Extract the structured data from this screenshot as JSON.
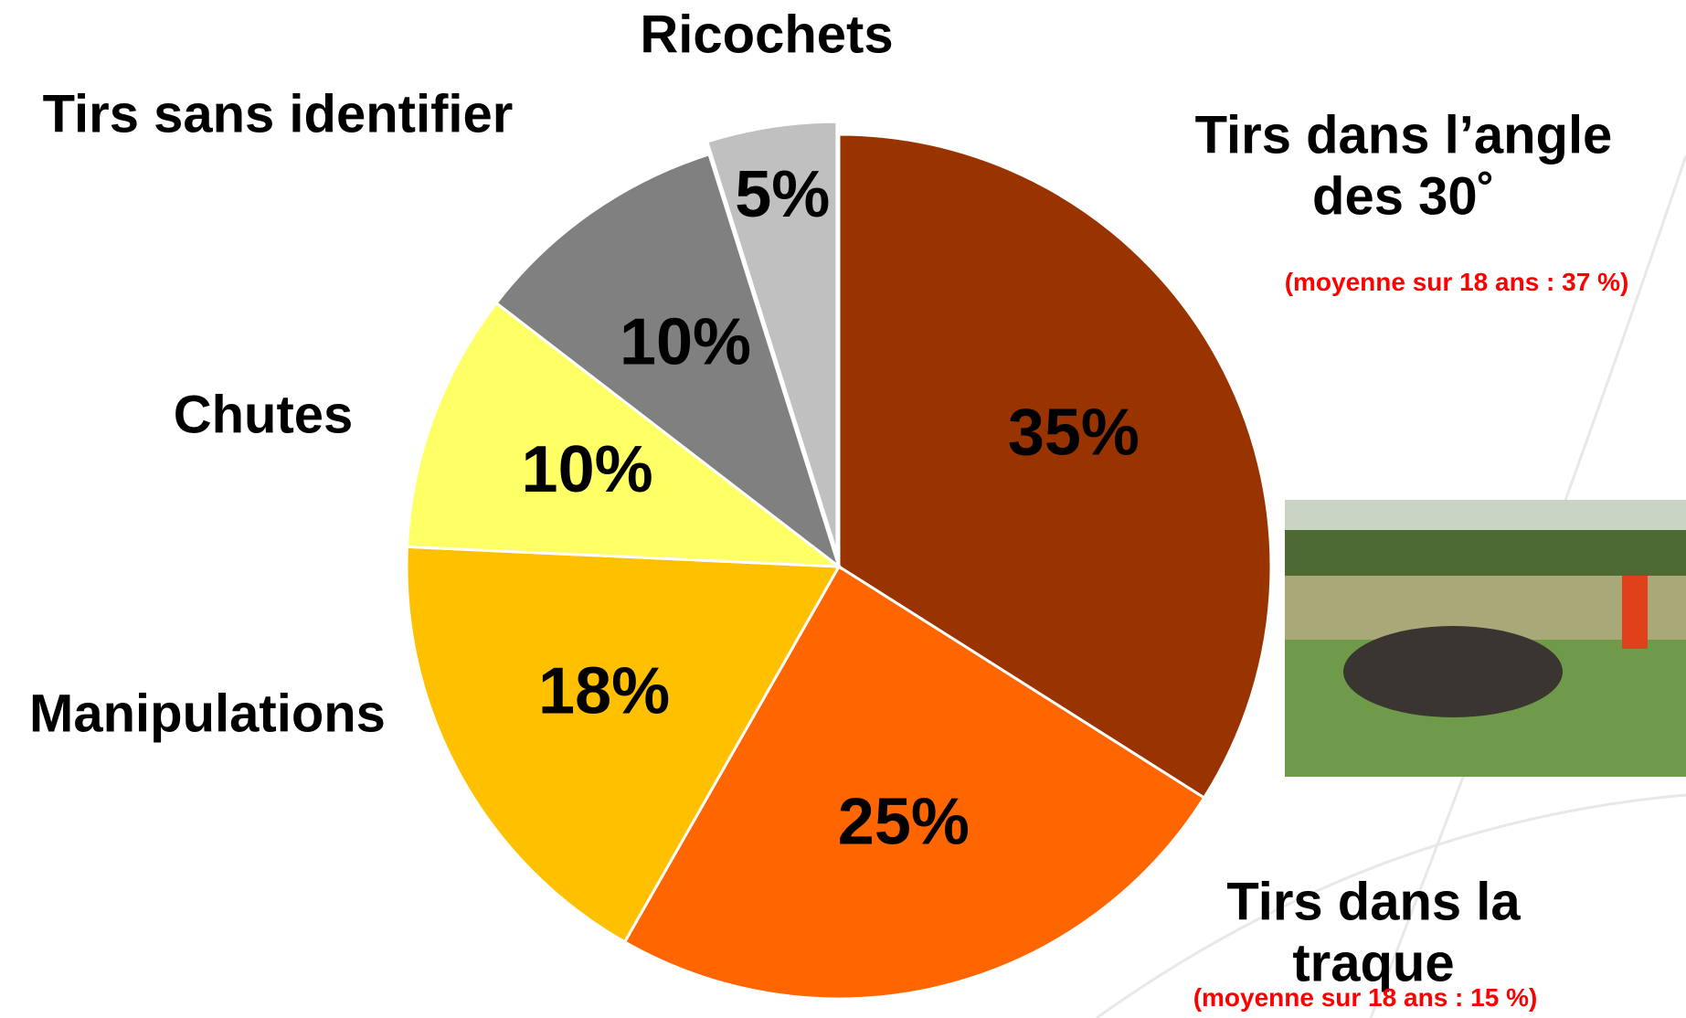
{
  "chart_data": {
    "type": "pie",
    "categories": [
      "Tirs dans l’angle des 30˚",
      "Tirs dans la traque",
      "Manipulations",
      "Chutes",
      "Tirs sans identifier",
      "Ricochets"
    ],
    "values": [
      35,
      25,
      18,
      10,
      10,
      5
    ],
    "value_labels": [
      "35%",
      "25%",
      "18%",
      "10%",
      "10%",
      "5%"
    ],
    "colors": [
      "#993300",
      "#ff6600",
      "#ffc000",
      "#ffff66",
      "#808080",
      "#c0c0c0"
    ],
    "exploded": [
      false,
      false,
      false,
      false,
      false,
      true
    ],
    "annotations": [
      {
        "category": 0,
        "text": "(moyenne sur 18 ans : 37 %)"
      },
      {
        "category": 1,
        "text": "(moyenne sur 18 ans : 15 %)"
      }
    ]
  }
}
